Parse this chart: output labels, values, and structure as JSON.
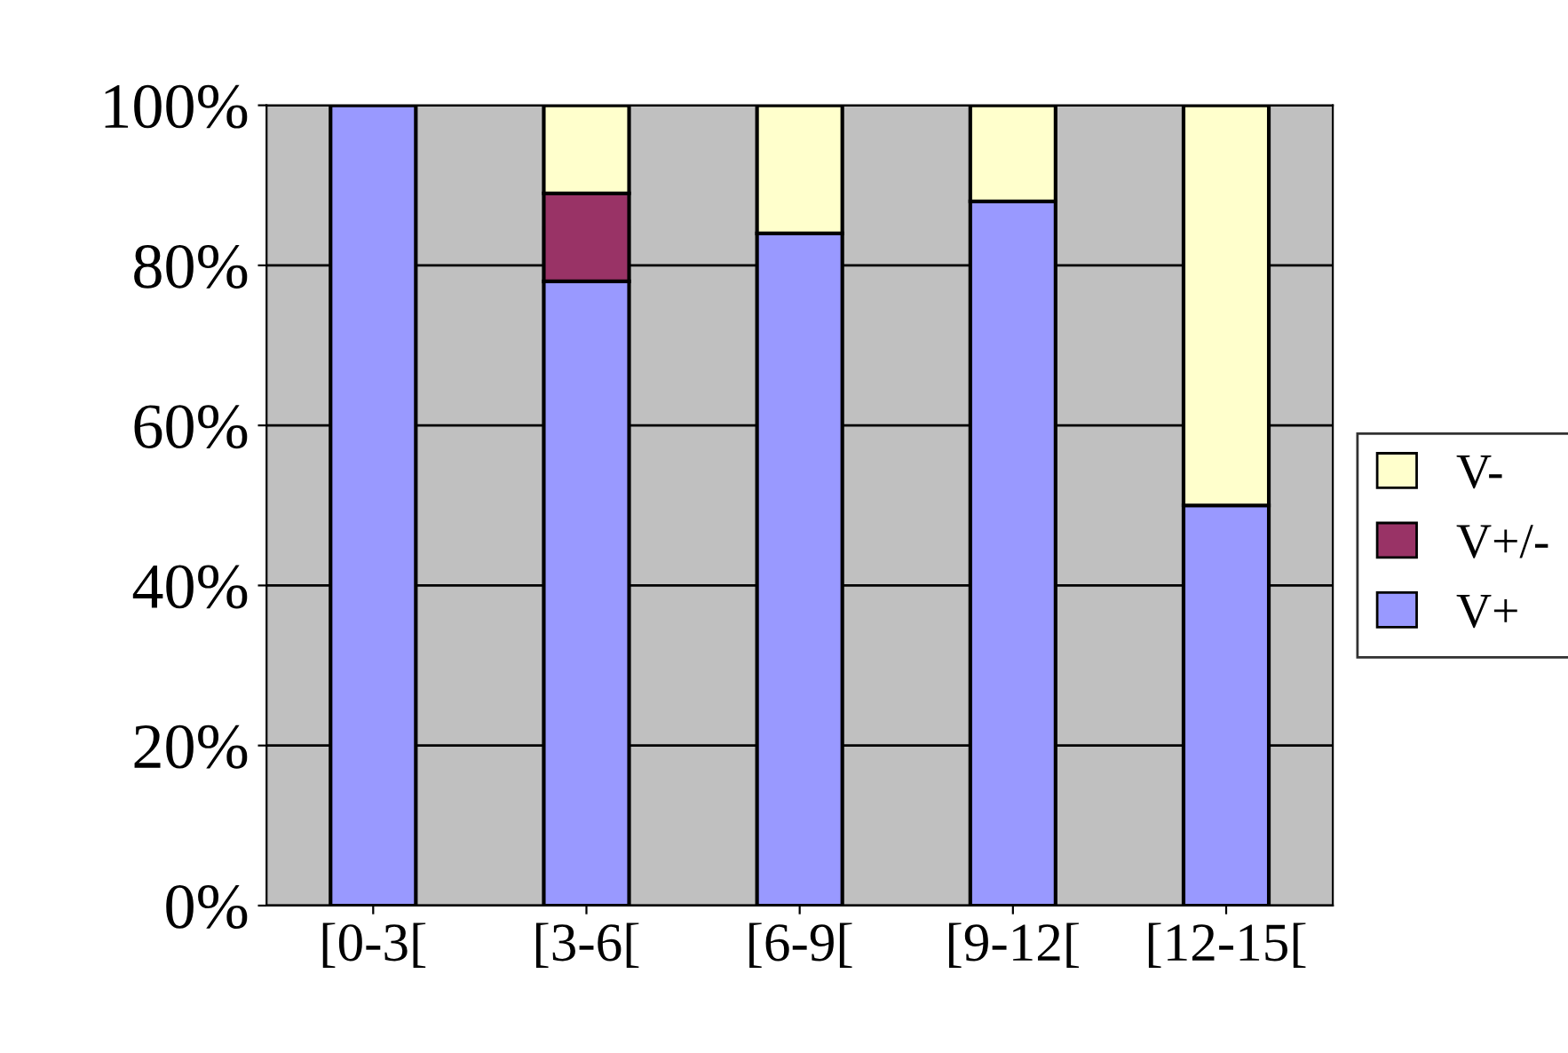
{
  "chart_data": {
    "type": "bar",
    "stacked": true,
    "categories": [
      "[0-3[",
      "[3-6[",
      "[6-9[",
      "[9-12[",
      "[12-15["
    ],
    "series": [
      {
        "name": "V+",
        "color": "#9999ff",
        "values": [
          100,
          78,
          84,
          88,
          50
        ]
      },
      {
        "name": "V+/-",
        "color": "#993366",
        "values": [
          null,
          11,
          null,
          null,
          null
        ]
      },
      {
        "name": "V-",
        "color": "#ffffcc",
        "values": [
          null,
          11,
          16,
          12,
          50
        ]
      }
    ],
    "ylim": [
      0,
      100
    ],
    "yticks": [
      {
        "value": 0,
        "label": "0%"
      },
      {
        "value": 20,
        "label": "20%"
      },
      {
        "value": 40,
        "label": "40%"
      },
      {
        "value": 60,
        "label": "60%"
      },
      {
        "value": 80,
        "label": "80%"
      },
      {
        "value": 100,
        "label": "100%"
      }
    ],
    "grid": "y",
    "legend": "right"
  }
}
